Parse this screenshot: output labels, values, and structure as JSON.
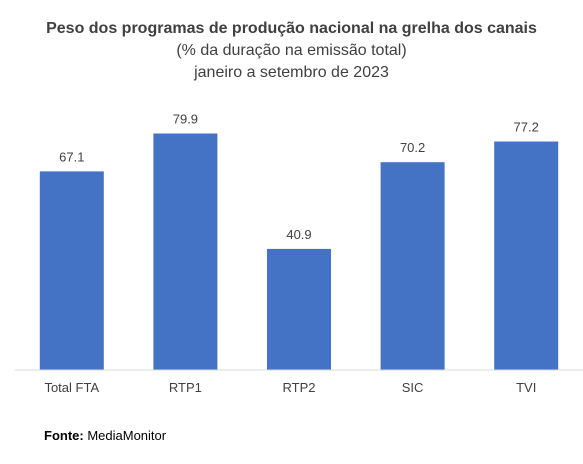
{
  "colors": {
    "bar": "#4472C4",
    "text": "#404040",
    "axis": "#D9D9D9"
  },
  "chart_data": {
    "type": "bar",
    "title": "Peso dos programas de produção nacional na grelha dos canais",
    "subtitle_lines": [
      "(% da duração na emissão total)",
      "janeiro a setembro de 2023"
    ],
    "categories": [
      "Total FTA",
      "RTP1",
      "RTP2",
      "SIC",
      "TVI"
    ],
    "values": [
      67.1,
      79.9,
      40.9,
      70.2,
      77.2
    ],
    "value_labels": [
      "67.1",
      "79.9",
      "40.9",
      "70.2",
      "77.2"
    ],
    "xlabel": "",
    "ylabel": "",
    "ylim": [
      0,
      85
    ],
    "grid": false,
    "legend": "none"
  },
  "source": {
    "label": "Fonte:",
    "text": "MediaMonitor"
  }
}
